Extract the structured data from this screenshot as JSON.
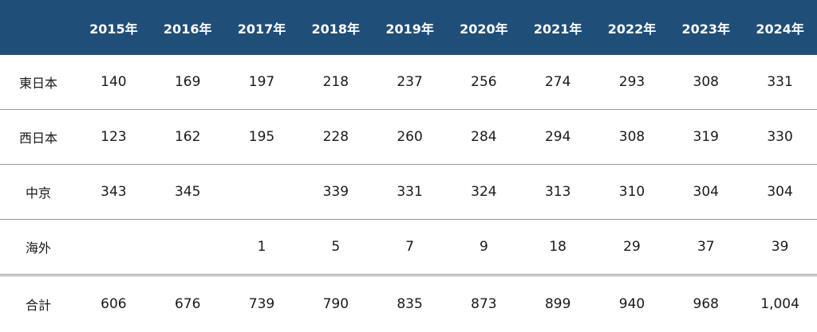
{
  "table": {
    "header_corner": "",
    "years": [
      "2015年",
      "2016年",
      "2017年",
      "2018年",
      "2019年",
      "2020年",
      "2021年",
      "2022年",
      "2023年",
      "2024年"
    ],
    "rows": [
      {
        "label": "東日本",
        "values": [
          "140",
          "169",
          "197",
          "218",
          "237",
          "256",
          "274",
          "293",
          "308",
          "331"
        ]
      },
      {
        "label": "西日本",
        "values": [
          "123",
          "162",
          "195",
          "228",
          "260",
          "284",
          "294",
          "308",
          "319",
          "330"
        ]
      },
      {
        "label": "中京",
        "values": [
          "343",
          "345",
          "",
          "339",
          "331",
          "324",
          "313",
          "310",
          "304",
          "304"
        ]
      },
      {
        "label": "海外",
        "values": [
          "",
          "",
          "1",
          "5",
          "7",
          "9",
          "18",
          "29",
          "37",
          "39"
        ]
      }
    ],
    "total": {
      "label": "合計",
      "values": [
        "606",
        "676",
        "739",
        "790",
        "835",
        "873",
        "899",
        "940",
        "968",
        "1,004"
      ]
    }
  },
  "colors": {
    "header_bg": "#1f4e79",
    "header_text": "#ffffff",
    "rule": "#9a9a9a"
  }
}
